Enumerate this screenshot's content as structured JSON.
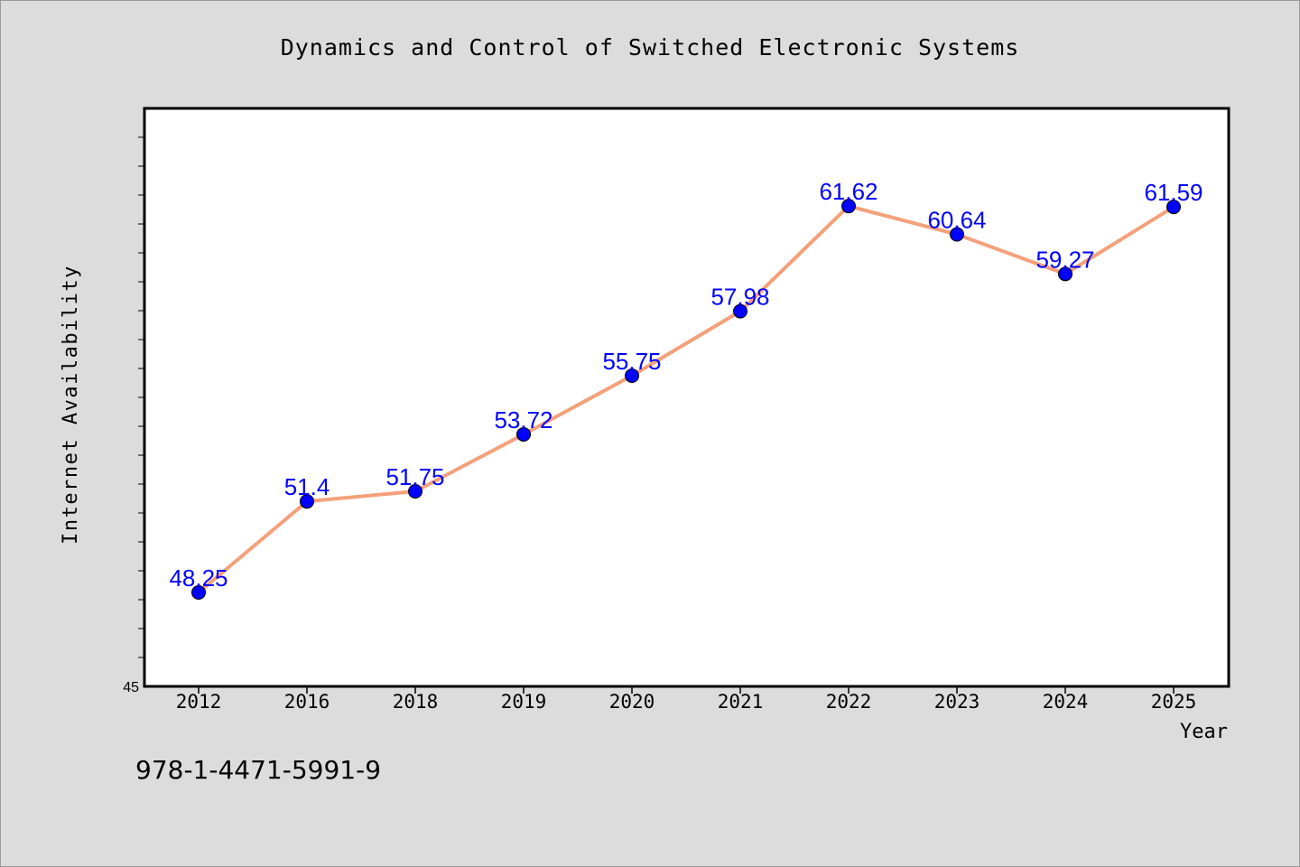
{
  "chart_data": {
    "type": "line",
    "title": "Dynamics and Control of Switched Electronic Systems",
    "xlabel": "Year",
    "ylabel": "Internet Availability",
    "categories": [
      "2012",
      "2016",
      "2018",
      "2019",
      "2020",
      "2021",
      "2022",
      "2023",
      "2024",
      "2025"
    ],
    "series": [
      {
        "values": [
          48.25,
          51.4,
          51.75,
          53.72,
          55.75,
          57.98,
          61.62,
          60.64,
          59.27,
          61.59
        ],
        "labels": [
          "48.25",
          "51.4",
          "51.75",
          "53.72",
          "55.75",
          "57.98",
          "61.62",
          "60.64",
          "59.27",
          "61.59"
        ]
      }
    ],
    "ylim": [
      45,
      65
    ],
    "y_tick_labels": [
      "45"
    ],
    "grid": false,
    "colors": {
      "line": "#f4a07a",
      "marker": "#0000ff",
      "marker_edge": "#000000",
      "data_label": "#0000ff",
      "plot_background": "#ffffff",
      "page_background": "#dcdcdc"
    }
  },
  "footer": {
    "isbn": "978-1-4471-5991-9"
  }
}
